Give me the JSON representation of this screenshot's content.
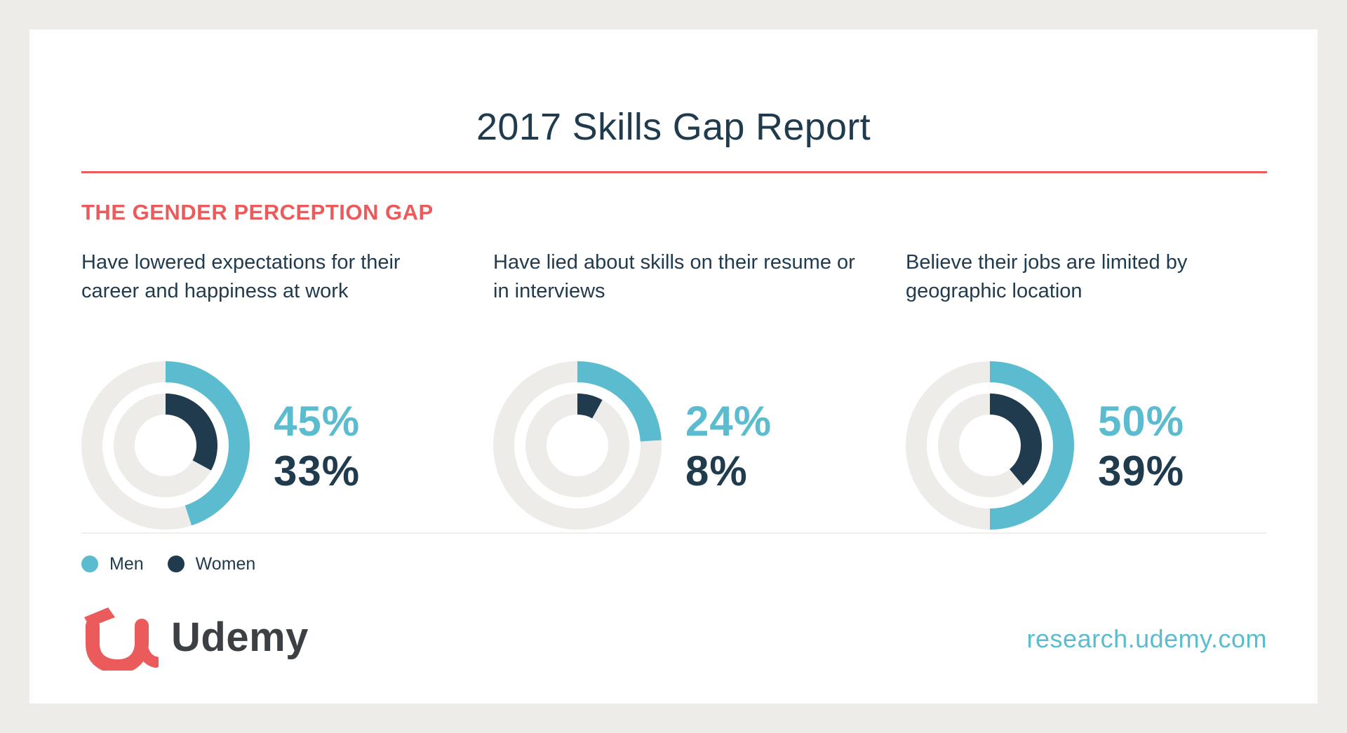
{
  "title": "2017 Skills Gap Report",
  "section_title": "THE GENDER PERCEPTION GAP",
  "colors": {
    "men": "#5bbccf",
    "women": "#1f3b4d",
    "track": "#eeece8",
    "accent": "#ec5b5b"
  },
  "legend": [
    {
      "label": "Men",
      "color": "#5bbccf"
    },
    {
      "label": "Women",
      "color": "#1f3b4d"
    }
  ],
  "brand": {
    "name": "Udemy",
    "url": "research.udemy.com",
    "logo_icon": "udemy-u-logo"
  },
  "chart_data": [
    {
      "type": "donut",
      "title": "Have lowered expectations for their career and happiness at work",
      "series": [
        {
          "name": "Men",
          "value": 45,
          "label": "45%"
        },
        {
          "name": "Women",
          "value": 33,
          "label": "33%"
        }
      ]
    },
    {
      "type": "donut",
      "title": "Have lied about skills on their resume or in interviews",
      "series": [
        {
          "name": "Men",
          "value": 24,
          "label": "24%"
        },
        {
          "name": "Women",
          "value": 8,
          "label": "8%"
        }
      ]
    },
    {
      "type": "donut",
      "title": "Believe their jobs are limited by geographic location",
      "series": [
        {
          "name": "Men",
          "value": 50,
          "label": "50%"
        },
        {
          "name": "Women",
          "value": 39,
          "label": "39%"
        }
      ]
    }
  ]
}
